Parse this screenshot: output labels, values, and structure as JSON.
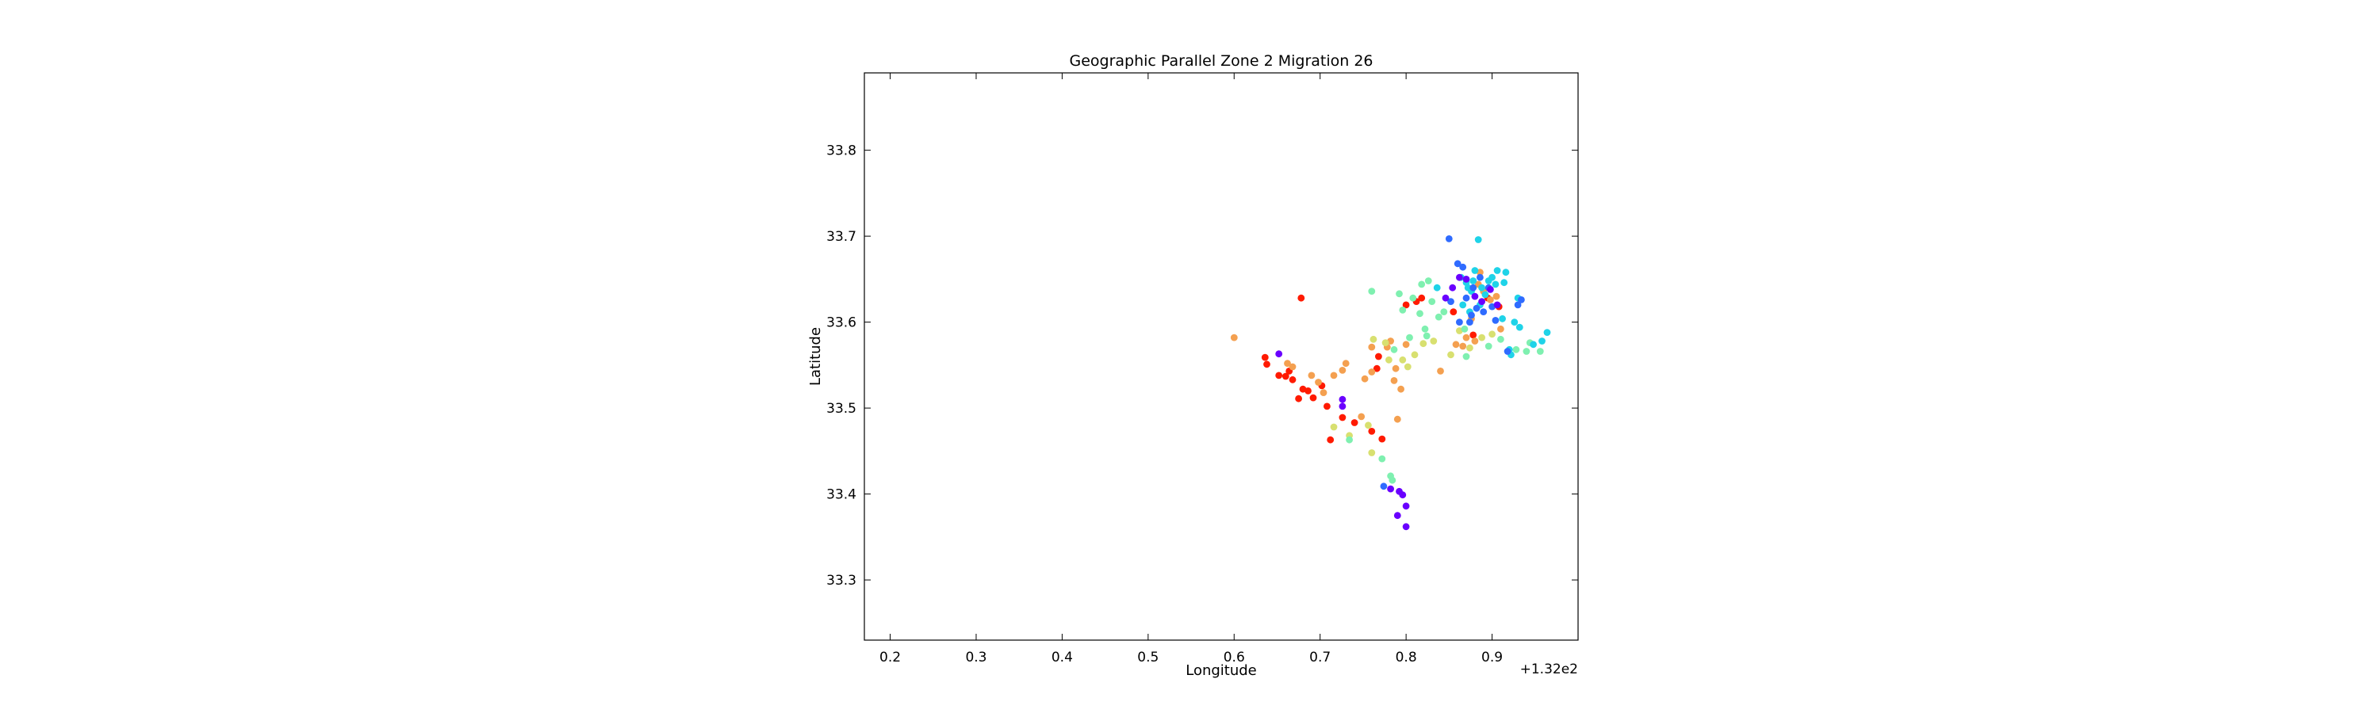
{
  "chart_data": {
    "type": "scatter",
    "title": "Geographic Parallel Zone 2 Migration 26",
    "xlabel": "Longitude",
    "ylabel": "Latitude",
    "x_offset_label": "+1.32e2",
    "x_offset": 132,
    "xlim": [
      132.17,
      133.0
    ],
    "ylim": [
      33.23,
      33.89
    ],
    "xticks": [
      132.2,
      132.3,
      132.4,
      132.5,
      132.6,
      132.7,
      132.8,
      132.9
    ],
    "xtick_labels": [
      "0.2",
      "0.3",
      "0.4",
      "0.5",
      "0.6",
      "0.7",
      "0.8",
      "0.9"
    ],
    "yticks": [
      33.3,
      33.4,
      33.5,
      33.6,
      33.7,
      33.8
    ],
    "ytick_labels": [
      "33.3",
      "33.4",
      "33.5",
      "33.6",
      "33.7",
      "33.8"
    ],
    "grid": false,
    "legend": "none",
    "colormap": "rainbow",
    "color_scale": {
      "violet": "#6a00ff",
      "blue": "#2f6bff",
      "cyan": "#1fd3e8",
      "mint": "#7ff0b0",
      "yellow": "#d8e070",
      "orange": "#f4a050",
      "red": "#ff1a00"
    },
    "series": [
      {
        "color": "#ff1a00",
        "points": [
          [
            132.636,
            33.559
          ],
          [
            132.638,
            33.551
          ],
          [
            132.652,
            33.538
          ],
          [
            132.66,
            33.537
          ],
          [
            132.664,
            33.543
          ],
          [
            132.668,
            33.533
          ],
          [
            132.675,
            33.511
          ],
          [
            132.68,
            33.522
          ],
          [
            132.686,
            33.52
          ],
          [
            132.692,
            33.512
          ],
          [
            132.702,
            33.526
          ],
          [
            132.708,
            33.502
          ],
          [
            132.712,
            33.463
          ],
          [
            132.726,
            33.489
          ],
          [
            132.74,
            33.483
          ],
          [
            132.76,
            33.473
          ],
          [
            132.772,
            33.464
          ],
          [
            132.678,
            33.628
          ],
          [
            132.766,
            33.546
          ],
          [
            132.768,
            33.56
          ],
          [
            132.8,
            33.62
          ],
          [
            132.812,
            33.624
          ],
          [
            132.818,
            33.628
          ],
          [
            132.855,
            33.612
          ],
          [
            132.878,
            33.585
          ],
          [
            132.895,
            33.628
          ],
          [
            132.908,
            33.618
          ]
        ]
      },
      {
        "color": "#f4a050",
        "points": [
          [
            132.6,
            33.582
          ],
          [
            132.662,
            33.552
          ],
          [
            132.668,
            33.548
          ],
          [
            132.69,
            33.538
          ],
          [
            132.698,
            33.53
          ],
          [
            132.704,
            33.518
          ],
          [
            132.716,
            33.538
          ],
          [
            132.726,
            33.544
          ],
          [
            132.73,
            33.552
          ],
          [
            132.748,
            33.49
          ],
          [
            132.752,
            33.534
          ],
          [
            132.76,
            33.542
          ],
          [
            132.778,
            33.571
          ],
          [
            132.782,
            33.578
          ],
          [
            132.786,
            33.532
          ],
          [
            132.788,
            33.546
          ],
          [
            132.79,
            33.487
          ],
          [
            132.794,
            33.522
          ],
          [
            132.8,
            33.574
          ],
          [
            132.84,
            33.543
          ],
          [
            132.858,
            33.574
          ],
          [
            132.866,
            33.572
          ],
          [
            132.87,
            33.582
          ],
          [
            132.876,
            33.604
          ],
          [
            132.88,
            33.578
          ],
          [
            132.884,
            33.644
          ],
          [
            132.886,
            33.658
          ],
          [
            132.89,
            33.636
          ],
          [
            132.898,
            33.626
          ],
          [
            132.905,
            33.63
          ],
          [
            132.91,
            33.592
          ],
          [
            132.76,
            33.571
          ]
        ]
      },
      {
        "color": "#d8e070",
        "points": [
          [
            132.716,
            33.478
          ],
          [
            132.734,
            33.468
          ],
          [
            132.76,
            33.448
          ],
          [
            132.756,
            33.48
          ],
          [
            132.762,
            33.58
          ],
          [
            132.776,
            33.576
          ],
          [
            132.78,
            33.556
          ],
          [
            132.796,
            33.556
          ],
          [
            132.802,
            33.548
          ],
          [
            132.81,
            33.562
          ],
          [
            132.82,
            33.575
          ],
          [
            132.832,
            33.578
          ],
          [
            132.852,
            33.562
          ],
          [
            132.862,
            33.59
          ],
          [
            132.888,
            33.582
          ],
          [
            132.9,
            33.586
          ],
          [
            132.874,
            33.57
          ]
        ]
      },
      {
        "color": "#7ff0b0",
        "points": [
          [
            132.734,
            33.463
          ],
          [
            132.76,
            33.636
          ],
          [
            132.772,
            33.441
          ],
          [
            132.782,
            33.421
          ],
          [
            132.784,
            33.416
          ],
          [
            132.786,
            33.568
          ],
          [
            132.792,
            33.633
          ],
          [
            132.796,
            33.614
          ],
          [
            132.804,
            33.582
          ],
          [
            132.808,
            33.628
          ],
          [
            132.816,
            33.61
          ],
          [
            132.818,
            33.644
          ],
          [
            132.822,
            33.592
          ],
          [
            132.824,
            33.584
          ],
          [
            132.826,
            33.648
          ],
          [
            132.83,
            33.624
          ],
          [
            132.838,
            33.606
          ],
          [
            132.844,
            33.612
          ],
          [
            132.868,
            33.592
          ],
          [
            132.87,
            33.56
          ],
          [
            132.896,
            33.572
          ],
          [
            132.91,
            33.58
          ],
          [
            132.928,
            33.568
          ],
          [
            132.94,
            33.566
          ],
          [
            132.944,
            33.576
          ],
          [
            132.956,
            33.566
          ]
        ]
      },
      {
        "color": "#1fd3e8",
        "points": [
          [
            132.836,
            33.64
          ],
          [
            132.864,
            33.652
          ],
          [
            132.87,
            33.646
          ],
          [
            132.872,
            33.64
          ],
          [
            132.876,
            33.636
          ],
          [
            132.878,
            33.648
          ],
          [
            132.88,
            33.66
          ],
          [
            132.884,
            33.696
          ],
          [
            132.888,
            33.64
          ],
          [
            132.892,
            33.632
          ],
          [
            132.896,
            33.648
          ],
          [
            132.9,
            33.652
          ],
          [
            132.904,
            33.644
          ],
          [
            132.906,
            33.66
          ],
          [
            132.912,
            33.604
          ],
          [
            132.914,
            33.646
          ],
          [
            132.916,
            33.658
          ],
          [
            132.92,
            33.568
          ],
          [
            132.922,
            33.562
          ],
          [
            132.926,
            33.6
          ],
          [
            132.93,
            33.628
          ],
          [
            132.932,
            33.594
          ],
          [
            132.948,
            33.574
          ],
          [
            132.958,
            33.578
          ],
          [
            132.964,
            33.588
          ],
          [
            132.866,
            33.62
          ],
          [
            132.874,
            33.612
          ],
          [
            132.886,
            33.62
          ]
        ]
      },
      {
        "color": "#2f6bff",
        "points": [
          [
            132.774,
            33.409
          ],
          [
            132.85,
            33.697
          ],
          [
            132.852,
            33.624
          ],
          [
            132.86,
            33.668
          ],
          [
            132.862,
            33.6
          ],
          [
            132.866,
            33.664
          ],
          [
            132.87,
            33.628
          ],
          [
            132.874,
            33.6
          ],
          [
            132.876,
            33.608
          ],
          [
            132.878,
            33.64
          ],
          [
            132.882,
            33.616
          ],
          [
            132.886,
            33.652
          ],
          [
            132.89,
            33.612
          ],
          [
            132.896,
            33.64
          ],
          [
            132.9,
            33.618
          ],
          [
            132.904,
            33.602
          ],
          [
            132.918,
            33.566
          ],
          [
            132.93,
            33.62
          ],
          [
            132.934,
            33.626
          ]
        ]
      },
      {
        "color": "#6a00ff",
        "points": [
          [
            132.652,
            33.563
          ],
          [
            132.726,
            33.51
          ],
          [
            132.726,
            33.502
          ],
          [
            132.782,
            33.406
          ],
          [
            132.79,
            33.375
          ],
          [
            132.792,
            33.403
          ],
          [
            132.796,
            33.399
          ],
          [
            132.8,
            33.386
          ],
          [
            132.8,
            33.362
          ],
          [
            132.846,
            33.628
          ],
          [
            132.854,
            33.64
          ],
          [
            132.862,
            33.652
          ],
          [
            132.87,
            33.65
          ],
          [
            132.88,
            33.63
          ],
          [
            132.888,
            33.624
          ],
          [
            132.898,
            33.638
          ],
          [
            132.906,
            33.62
          ]
        ]
      }
    ]
  }
}
